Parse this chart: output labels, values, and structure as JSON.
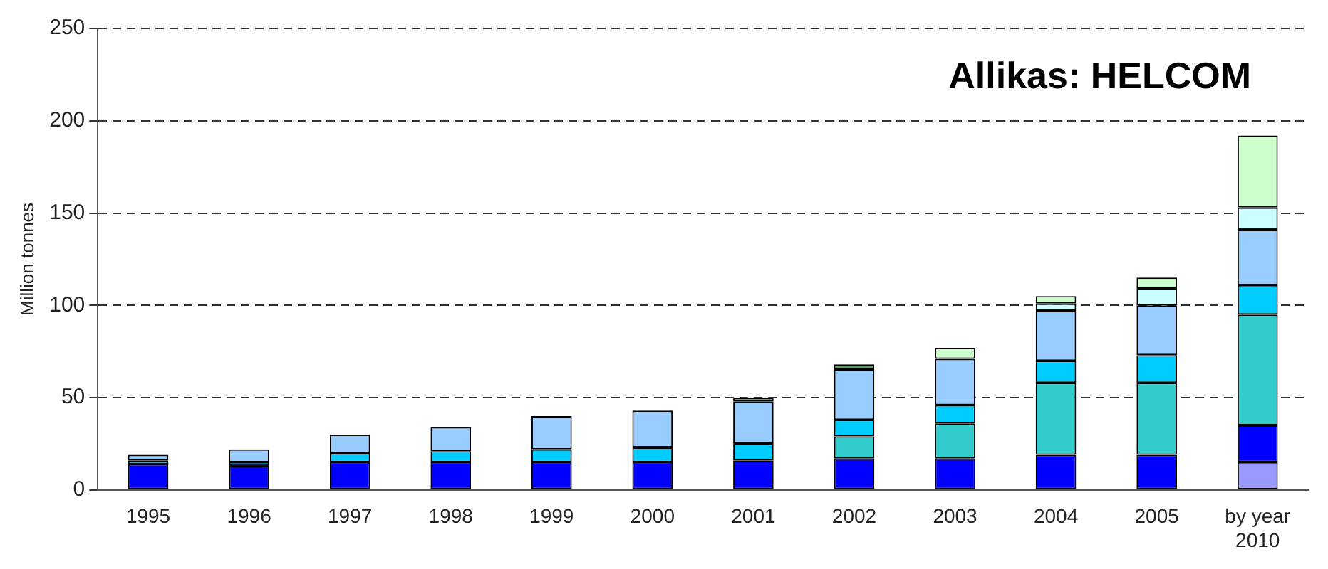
{
  "chart_data": {
    "type": "bar",
    "stacked": true,
    "ylabel": "Million tonnes",
    "annotations": [
      "Allikas: HELCOM"
    ],
    "categories": [
      "1995",
      "1996",
      "1997",
      "1998",
      "1999",
      "2000",
      "2001",
      "2002",
      "2003",
      "2004",
      "2005",
      "by year 2010"
    ],
    "series": [
      {
        "color": "#9999ff",
        "values": [
          null,
          null,
          null,
          null,
          null,
          null,
          null,
          null,
          null,
          null,
          null,
          15
        ]
      },
      {
        "color": "#0000ff",
        "values": [
          14,
          13,
          15,
          15,
          15,
          15,
          16,
          17,
          17,
          19,
          19,
          20
        ]
      },
      {
        "color": "#33cccc",
        "values": [
          null,
          null,
          null,
          null,
          null,
          null,
          null,
          12,
          19,
          39,
          39,
          60
        ]
      },
      {
        "color": "#00ccff",
        "values": [
          2,
          2,
          5,
          6,
          7,
          8,
          9,
          9,
          10,
          12,
          15,
          16
        ]
      },
      {
        "color": "#99ccff",
        "values": [
          3,
          7,
          10,
          13,
          18,
          20,
          23,
          27,
          25,
          27,
          27,
          30
        ]
      },
      {
        "color": "#669966",
        "values": [
          null,
          null,
          null,
          null,
          null,
          null,
          2,
          3,
          null,
          null,
          null,
          null
        ]
      },
      {
        "color": "#ccffff",
        "values": [
          null,
          null,
          null,
          null,
          null,
          null,
          null,
          null,
          null,
          4,
          9,
          12
        ]
      },
      {
        "color": "#ccffcc",
        "values": [
          null,
          null,
          null,
          null,
          null,
          null,
          null,
          null,
          6,
          4,
          6,
          39
        ]
      }
    ],
    "ylim": [
      0,
      250
    ],
    "yticks": [
      0,
      50,
      100,
      150,
      200,
      250
    ],
    "grid": "y",
    "line_style": "dashed",
    "legend": false
  }
}
